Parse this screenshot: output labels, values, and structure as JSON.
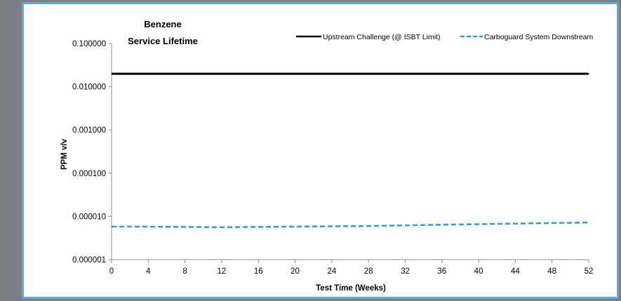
{
  "chart_data": {
    "type": "line",
    "title": [
      "Benzene",
      "Service Lifetime"
    ],
    "xlabel": "Test Time (Weeks)",
    "ylabel": "PPM v/v",
    "y_scale": "log",
    "xlim": [
      0,
      52
    ],
    "ylim": [
      1e-06,
      0.1
    ],
    "x_ticks": [
      0,
      4,
      8,
      12,
      16,
      20,
      24,
      28,
      32,
      36,
      40,
      44,
      48,
      52
    ],
    "y_ticks": [
      {
        "value": 0.1,
        "label": "0.100000"
      },
      {
        "value": 0.01,
        "label": "0.010000"
      },
      {
        "value": 0.001,
        "label": "0.001000"
      },
      {
        "value": 0.0001,
        "label": "0.000100"
      },
      {
        "value": 1e-05,
        "label": "0.000010"
      },
      {
        "value": 1e-06,
        "label": "0.000001"
      }
    ],
    "grid": false,
    "legend_position": "top-right",
    "series": [
      {
        "name": "Upstream Challenge (@ ISBT Limit)",
        "color": "#000000",
        "style": "solid",
        "x": [
          0,
          52
        ],
        "y": [
          0.02,
          0.02
        ]
      },
      {
        "name": "Carboguard System Downstream",
        "color": "#2b9be0",
        "style": "dashed",
        "x": [
          0,
          4,
          8,
          12,
          16,
          20,
          24,
          28,
          32,
          36,
          40,
          44,
          48,
          52
        ],
        "y": [
          5.8e-06,
          5.8e-06,
          5.7e-06,
          5.6e-06,
          5.7e-06,
          5.8e-06,
          5.9e-06,
          6e-06,
          6.2e-06,
          6.4e-06,
          6.6e-06,
          6.8e-06,
          7e-06,
          7.2e-06
        ]
      }
    ]
  }
}
